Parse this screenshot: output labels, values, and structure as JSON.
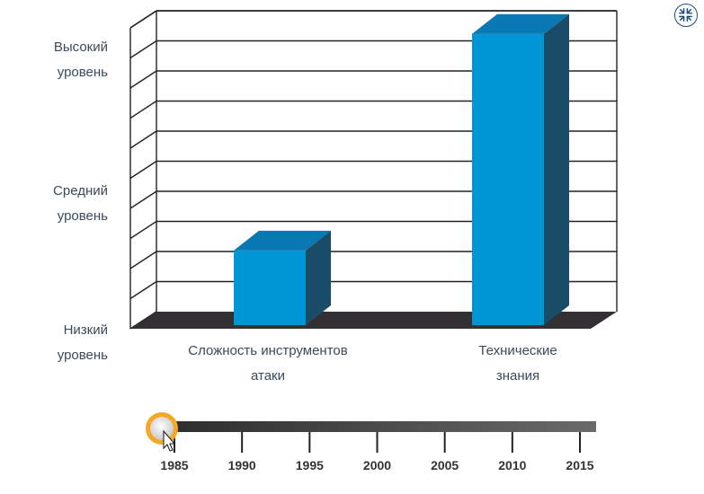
{
  "chart_data": {
    "type": "bar",
    "style": "3d",
    "categories": [
      "Сложность инструментов атаки",
      "Технические знания"
    ],
    "values": [
      2.6,
      9.8
    ],
    "ylim": [
      0,
      10
    ],
    "y_tick_labels": [
      {
        "lines": [
          "Низкий",
          "уровень"
        ],
        "value": 0
      },
      {
        "lines": [
          "Средний",
          "уровень"
        ],
        "value": 5
      },
      {
        "lines": [
          "Высокий",
          "уровень"
        ],
        "value": 10
      }
    ],
    "x_label_lines": [
      [
        "Сложность инструментов",
        "атаки"
      ],
      [
        "Технические",
        "знания"
      ]
    ],
    "grid": true,
    "bar_color": "#0096d6",
    "bar_top_color": "#0a78b2",
    "bar_side_color": "#1a4c68",
    "floor_color": "#333033"
  },
  "timeline": {
    "years": [
      "1985",
      "1990",
      "1995",
      "2000",
      "2005",
      "2010",
      "2015"
    ],
    "selected": "1985",
    "handle_color": "#f5a623"
  },
  "controls": {
    "collapse_icon": "collapse-arrows-icon"
  }
}
